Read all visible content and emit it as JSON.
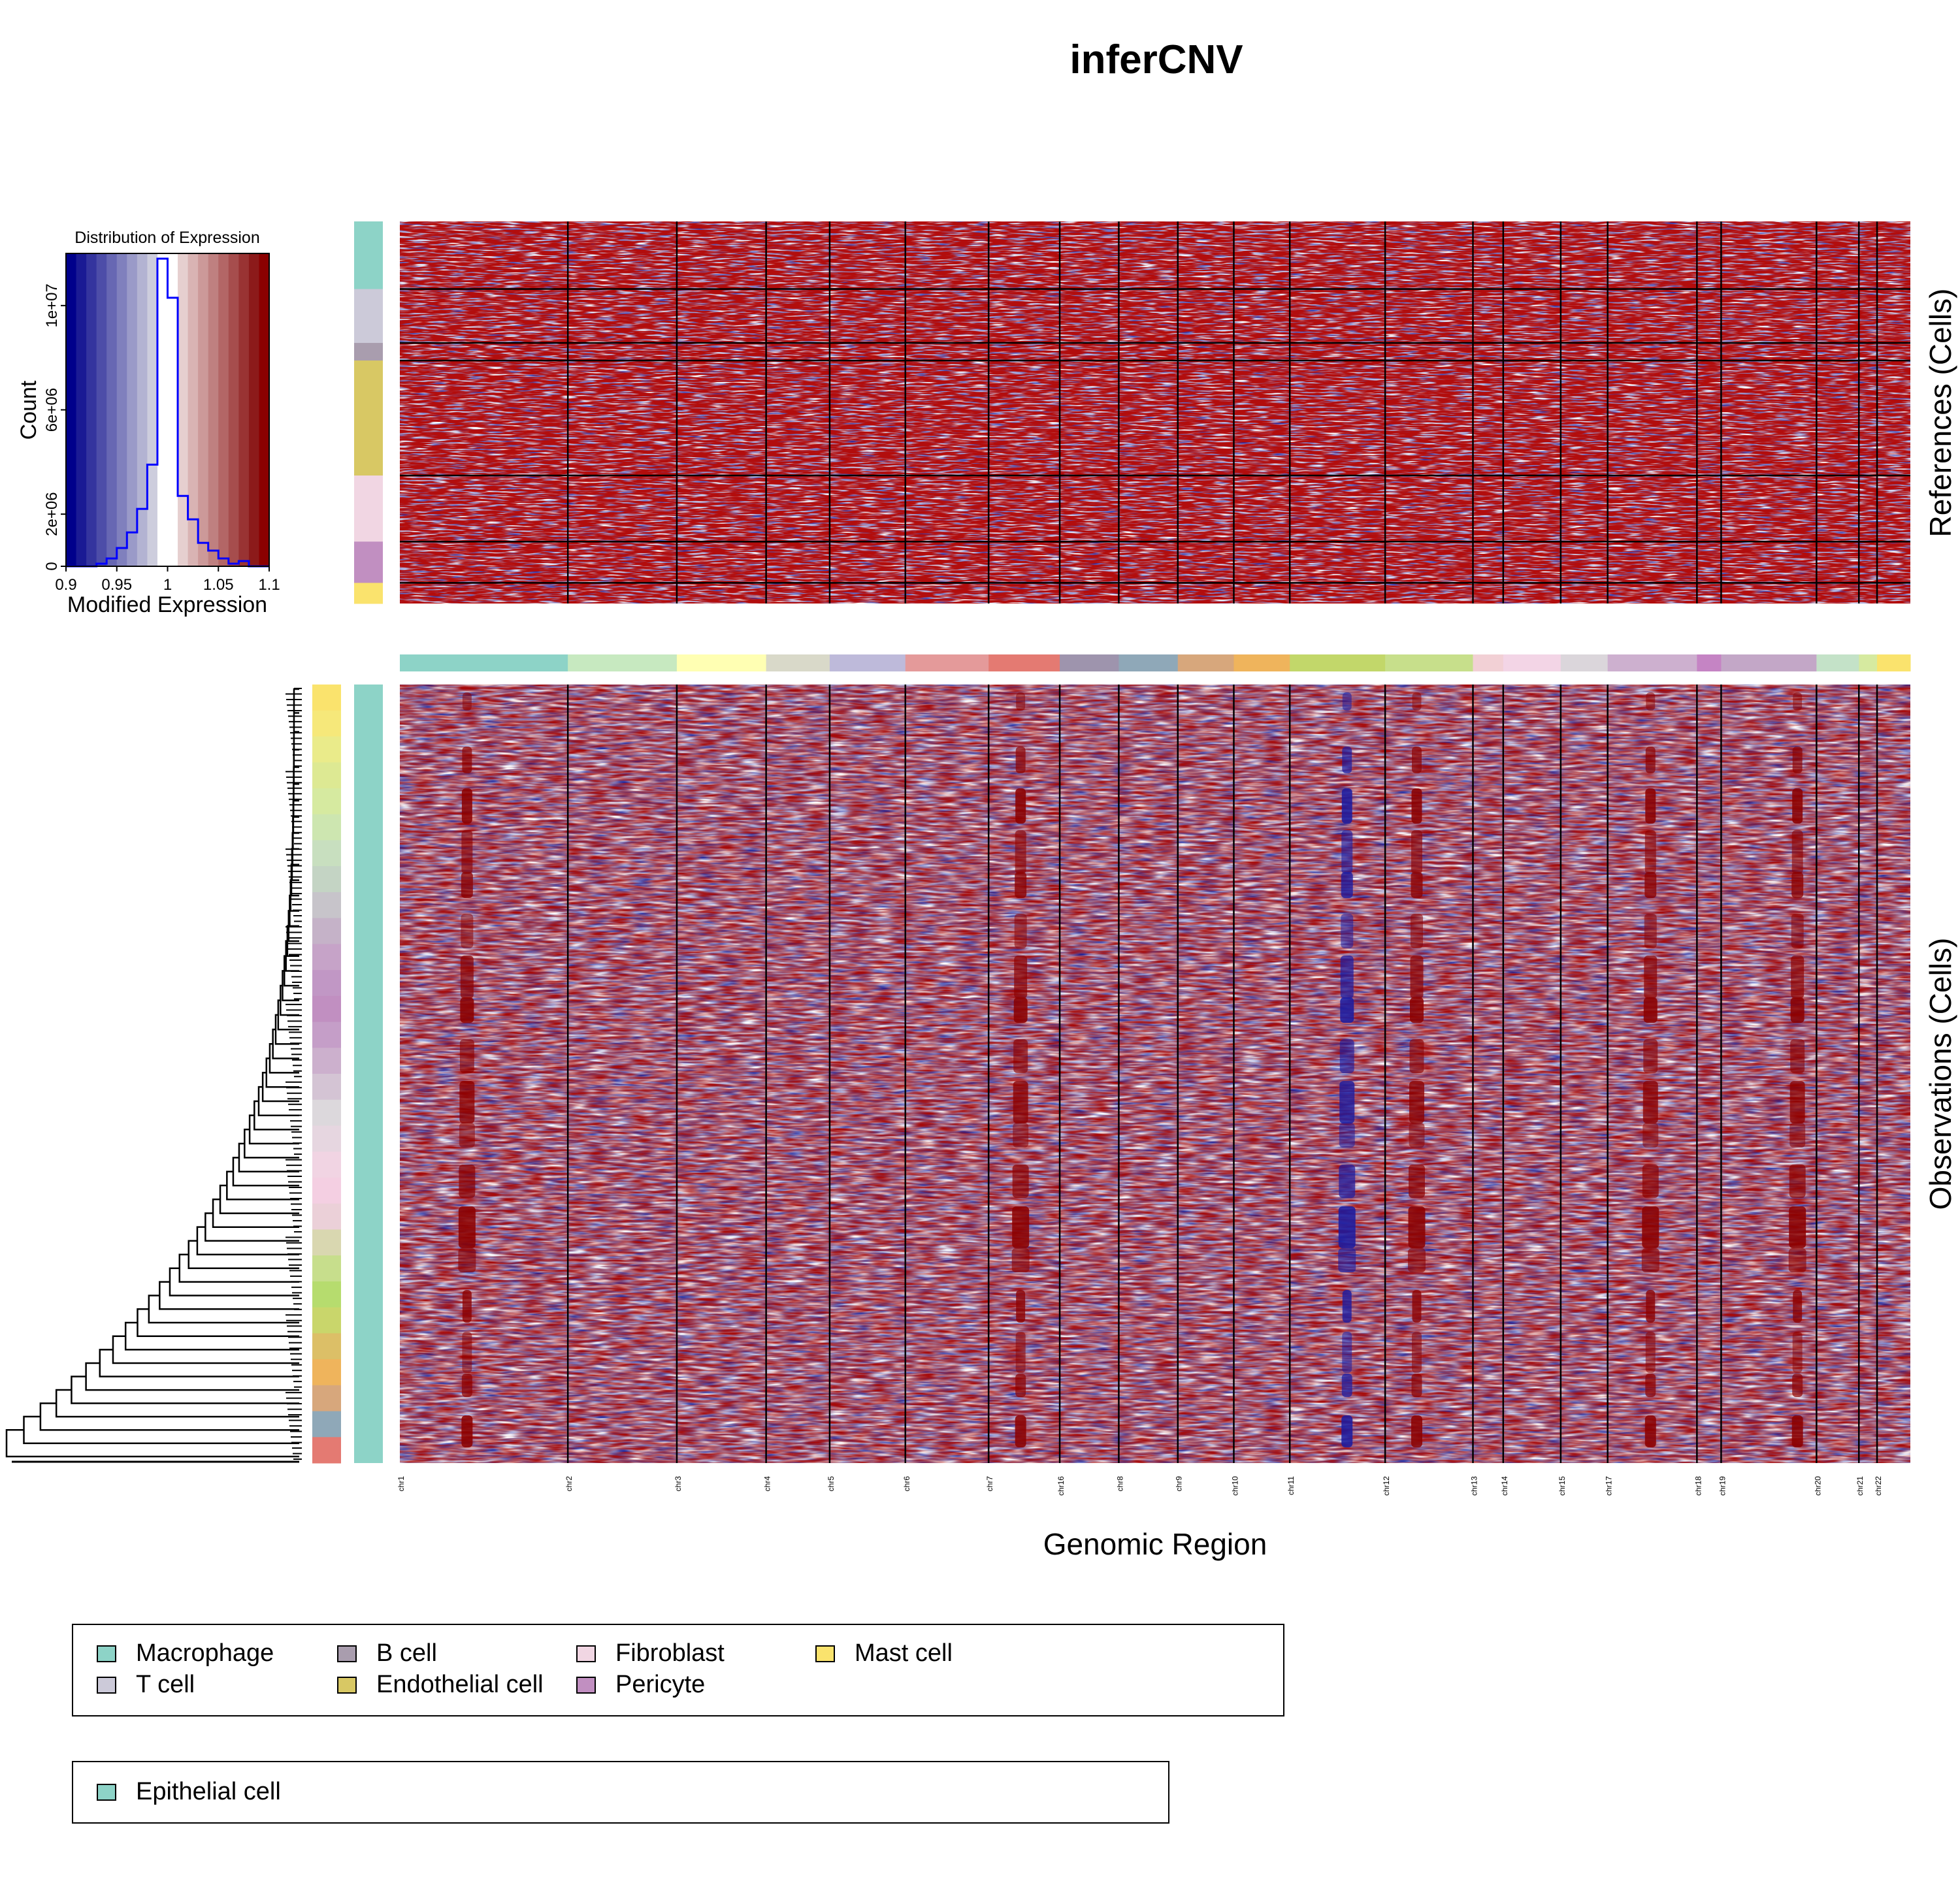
{
  "title": "inferCNV",
  "histogram": {
    "title": "Distribution of Expression",
    "xlabel": "Modified Expression",
    "ylabel": "Count",
    "xticks": [
      "0.9",
      "0.95",
      "1",
      "1.05",
      "1.1"
    ],
    "yticks": [
      "0",
      "2e+06",
      "6e+06",
      "1e+07"
    ]
  },
  "axes": {
    "xlabel": "Genomic Region",
    "references_label": "References (Cells)",
    "observations_label": "Observations (Cells)"
  },
  "chart_data": {
    "type": "heatmap",
    "title": "inferCNV",
    "value_range": [
      0.9,
      1.1
    ],
    "colors": {
      "low": "#00008b",
      "mid": "#ffffff",
      "high": "#8b0000"
    },
    "histogram": {
      "bins": [
        0.9,
        0.91,
        0.92,
        0.93,
        0.94,
        0.95,
        0.96,
        0.97,
        0.98,
        0.99,
        1.0,
        1.01,
        1.02,
        1.03,
        1.04,
        1.05,
        1.06,
        1.07,
        1.08,
        1.09,
        1.1
      ],
      "counts": [
        0,
        0,
        0,
        100000,
        300000,
        700000,
        1300000,
        2200000,
        3900000,
        11800000,
        10300000,
        2700000,
        1800000,
        900000,
        600000,
        300000,
        100000,
        200000,
        0,
        0
      ],
      "xlim": [
        0.9,
        1.1
      ],
      "ylim": [
        0,
        12000000
      ]
    },
    "chromosomes": [
      {
        "label": "chr1",
        "width": 11.1,
        "color": "#8dd3c7"
      },
      {
        "label": "chr2",
        "width": 7.2,
        "color": "#c7e9c0"
      },
      {
        "label": "chr3",
        "width": 5.9,
        "color": "#ffffb3"
      },
      {
        "label": "chr4",
        "width": 4.2,
        "color": "#d9d9c9"
      },
      {
        "label": "chr5",
        "width": 5.0,
        "color": "#bebada"
      },
      {
        "label": "chr6",
        "width": 5.5,
        "color": "#e49a9a"
      },
      {
        "label": "chr7",
        "width": 4.7,
        "color": "#e47a72"
      },
      {
        "label": "chr16",
        "width": 3.9,
        "color": "#9e94ad"
      },
      {
        "label": "chr8",
        "width": 3.9,
        "color": "#8fa8b8"
      },
      {
        "label": "chr9",
        "width": 3.7,
        "color": "#d7a77c"
      },
      {
        "label": "chr10",
        "width": 3.7,
        "color": "#efb45c"
      },
      {
        "label": "chr11",
        "width": 6.3,
        "color": "#c2d76a"
      },
      {
        "label": "chr12",
        "width": 5.8,
        "color": "#c7df8b"
      },
      {
        "label": "chr13",
        "width": 2.0,
        "color": "#f2d0d5"
      },
      {
        "label": "chr14",
        "width": 3.8,
        "color": "#f3d5e6"
      },
      {
        "label": "chr15",
        "width": 3.1,
        "color": "#dbd6db"
      },
      {
        "label": "chr17",
        "width": 5.9,
        "color": "#cdb0cf"
      },
      {
        "label": "chr18",
        "width": 1.6,
        "color": "#c584c4"
      },
      {
        "label": "chr19",
        "width": 6.3,
        "color": "#c3a7c7"
      },
      {
        "label": "chr20",
        "width": 2.8,
        "color": "#c4e2c8"
      },
      {
        "label": "chr21",
        "width": 1.2,
        "color": "#d6eaa0"
      },
      {
        "label": "chr22",
        "width": 2.2,
        "color": "#fae36d"
      }
    ],
    "reference_groups": [
      {
        "name": "Macrophage",
        "fraction": 0.177,
        "color": "#8dd3c7"
      },
      {
        "name": "T cell",
        "fraction": 0.141,
        "color": "#cccad9"
      },
      {
        "name": "B cell",
        "fraction": 0.046,
        "color": "#a99dae"
      },
      {
        "name": "Endothelial cell",
        "fraction": 0.301,
        "color": "#d8c864"
      },
      {
        "name": "Fibroblast",
        "fraction": 0.173,
        "color": "#f1d6e3"
      },
      {
        "name": "Pericyte",
        "fraction": 0.108,
        "color": "#c18fc1"
      },
      {
        "name": "Mast cell",
        "fraction": 0.054,
        "color": "#fae36d"
      }
    ],
    "observation_groups": [
      {
        "name": "Epithelial cell",
        "color": "#8dd3c7"
      }
    ],
    "chromosome_signals": [
      {
        "label": "chr12",
        "position": 0.36,
        "type": "gain"
      },
      {
        "label": "chr17",
        "position": 0.48,
        "type": "gain"
      },
      {
        "label": "chr1",
        "position": 0.4,
        "type": "gain"
      },
      {
        "label": "chr19",
        "position": 0.8,
        "type": "gain"
      },
      {
        "label": "chr7",
        "position": 0.45,
        "type": "gain"
      },
      {
        "label": "chr11",
        "position": 0.6,
        "type": "loss"
      }
    ]
  },
  "legend_reference": [
    {
      "label": "Macrophage",
      "color": "#8dd3c7"
    },
    {
      "label": "T cell",
      "color": "#cccad9"
    },
    {
      "label": "B cell",
      "color": "#a99dae"
    },
    {
      "label": "Endothelial cell",
      "color": "#d8c864"
    },
    {
      "label": "Fibroblast",
      "color": "#f1d6e3"
    },
    {
      "label": "Pericyte",
      "color": "#c18fc1"
    },
    {
      "label": "Mast cell",
      "color": "#fae36d"
    }
  ],
  "legend_observation": [
    {
      "label": "Epithelial cell",
      "color": "#8dd3c7"
    }
  ]
}
